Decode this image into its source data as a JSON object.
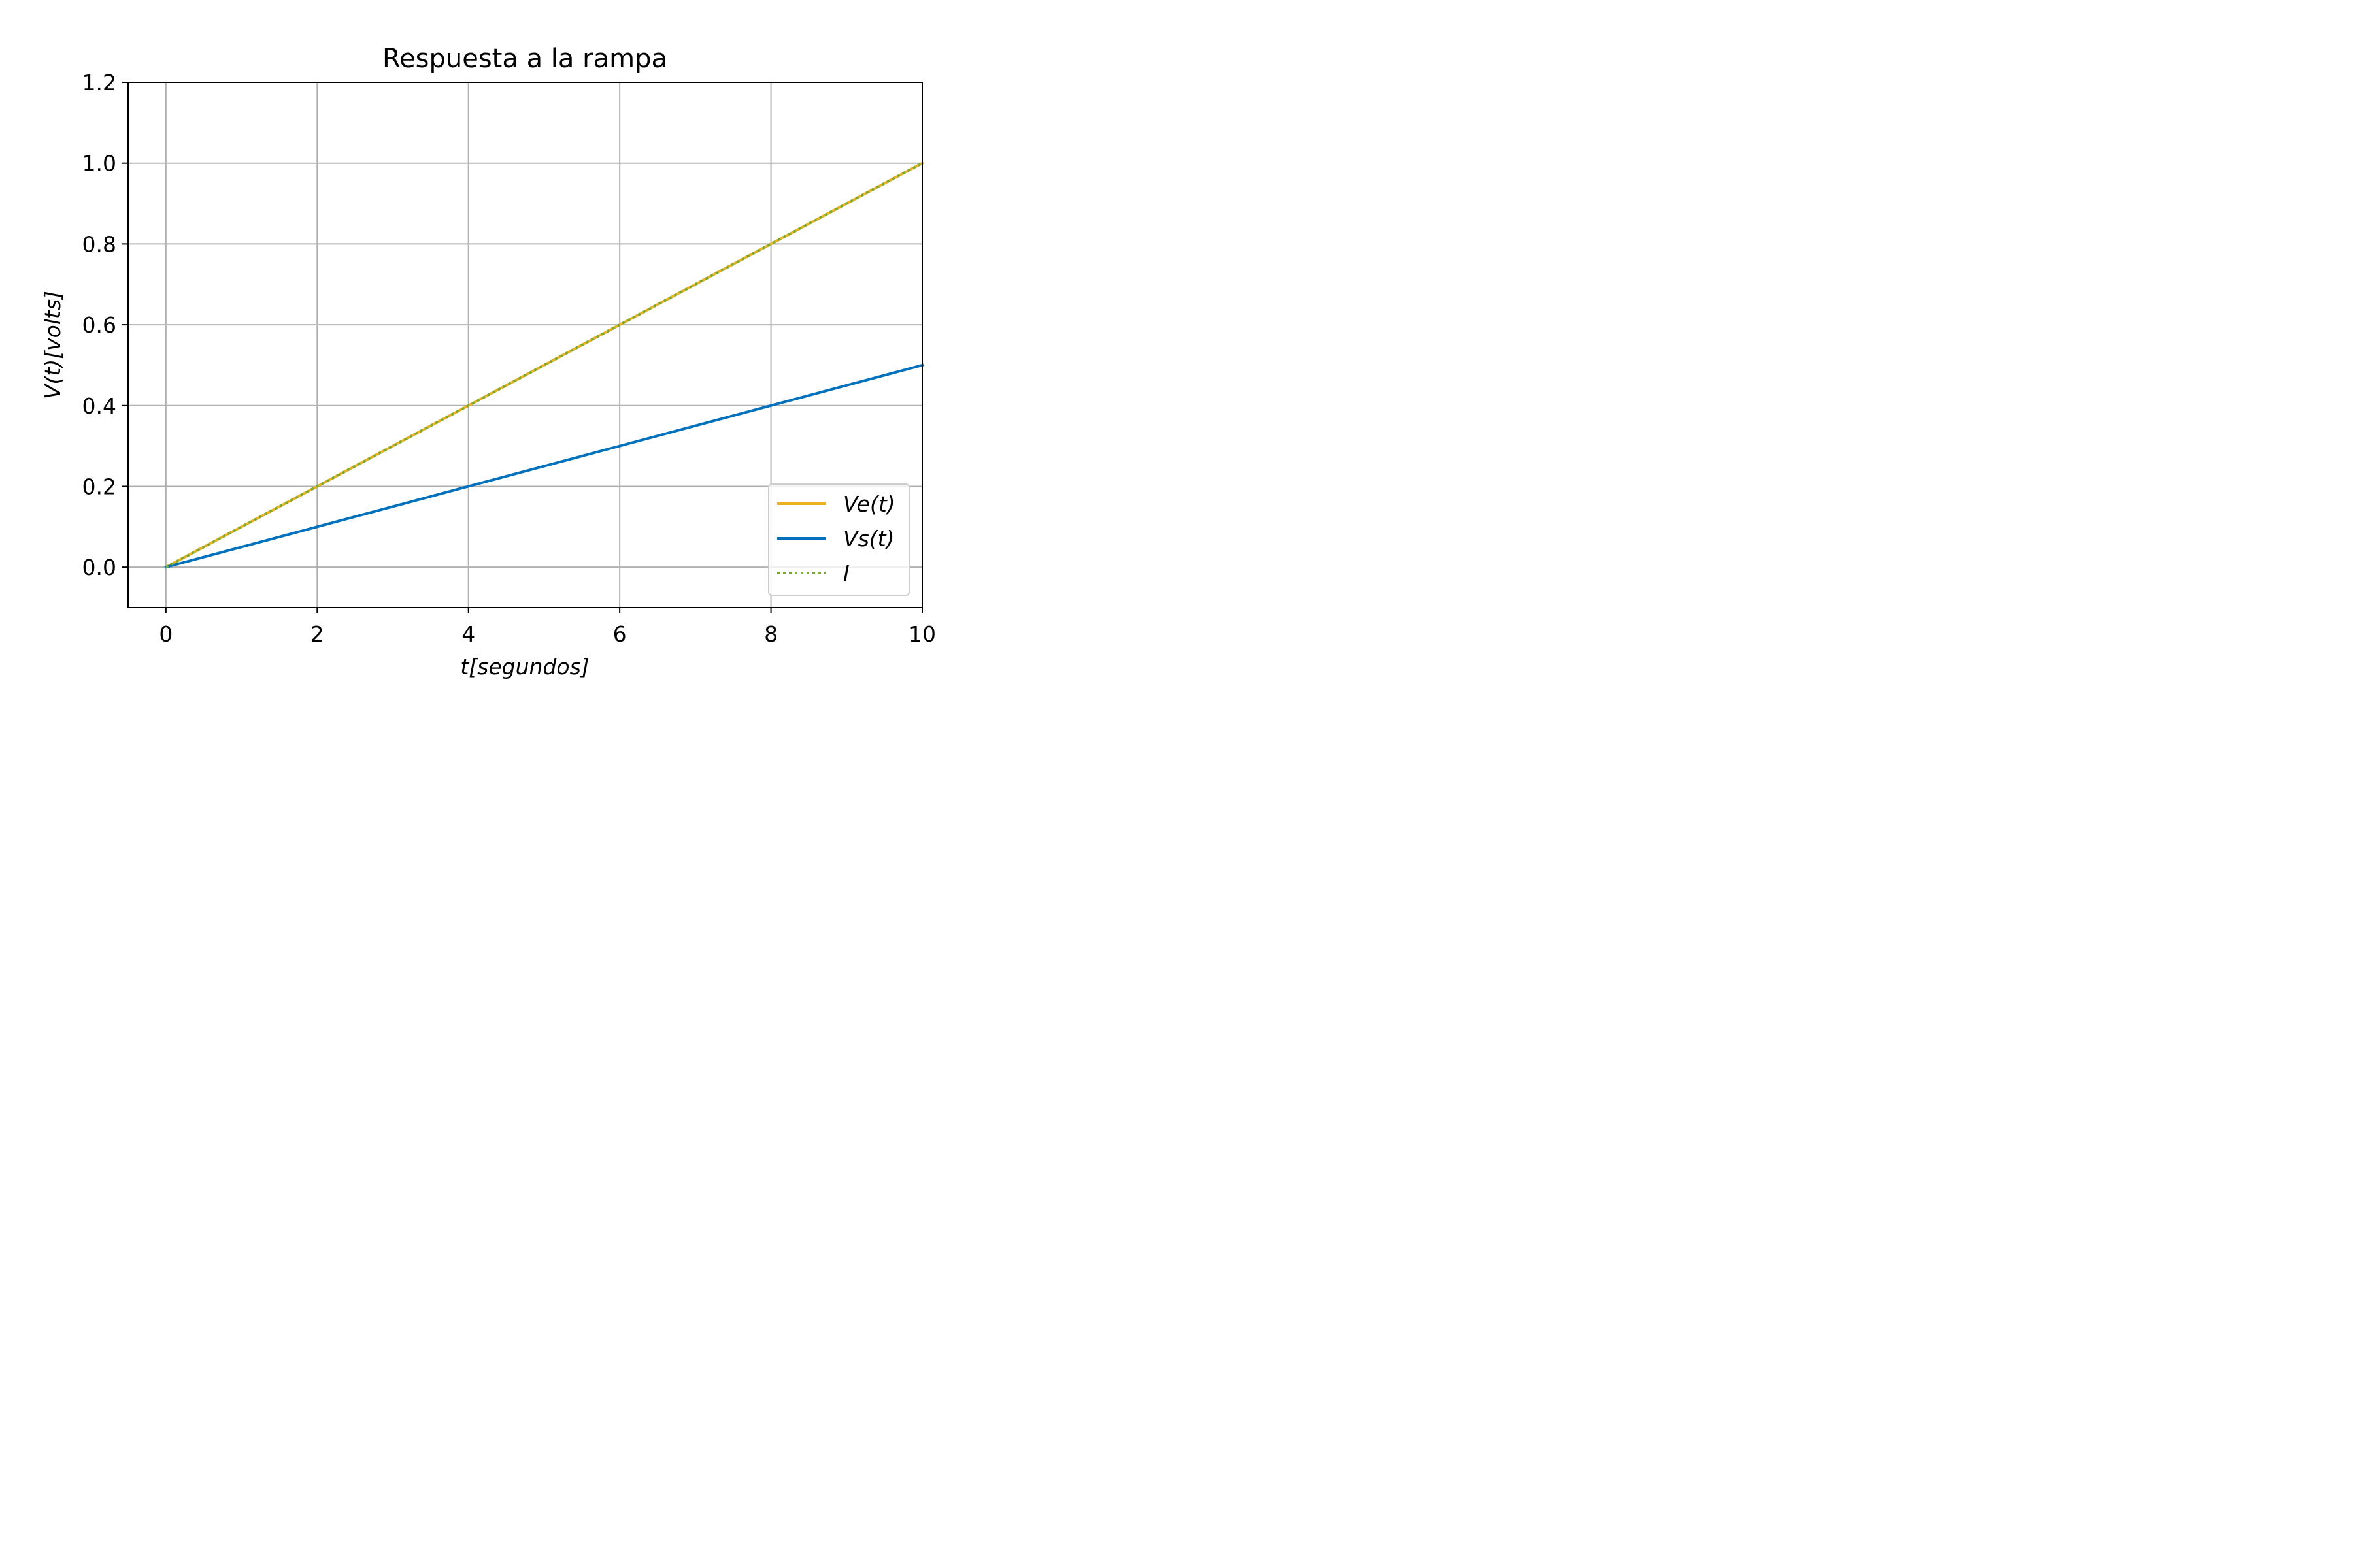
{
  "chart_data": {
    "type": "line",
    "title": "Respuesta a la rampa",
    "xlabel": "t[segundos]",
    "ylabel": "V(t)[volts]",
    "xlim": [
      -0.5,
      10
    ],
    "ylim": [
      -0.1,
      1.2
    ],
    "xticks": [
      "0",
      "2",
      "4",
      "6",
      "8",
      "10"
    ],
    "yticks": [
      "0.0",
      "0.2",
      "0.4",
      "0.6",
      "0.8",
      "1.0",
      "1.2"
    ],
    "grid": true,
    "legend_position": "lower-right",
    "x": [
      0,
      2,
      4,
      6,
      8,
      10
    ],
    "series": [
      {
        "name": "Ve(t)",
        "values": [
          0,
          0.2,
          0.4,
          0.6,
          0.8,
          1.0
        ],
        "color": "#EDB120",
        "style": "solid"
      },
      {
        "name": "Vs(t)",
        "values": [
          0,
          0.1,
          0.2,
          0.3,
          0.4,
          0.5
        ],
        "color": "#0072BD",
        "style": "solid"
      },
      {
        "name": "I",
        "values": [
          0,
          0.2,
          0.4,
          0.6,
          0.8,
          1.0
        ],
        "color": "#77AC30",
        "style": "dotted"
      }
    ]
  }
}
